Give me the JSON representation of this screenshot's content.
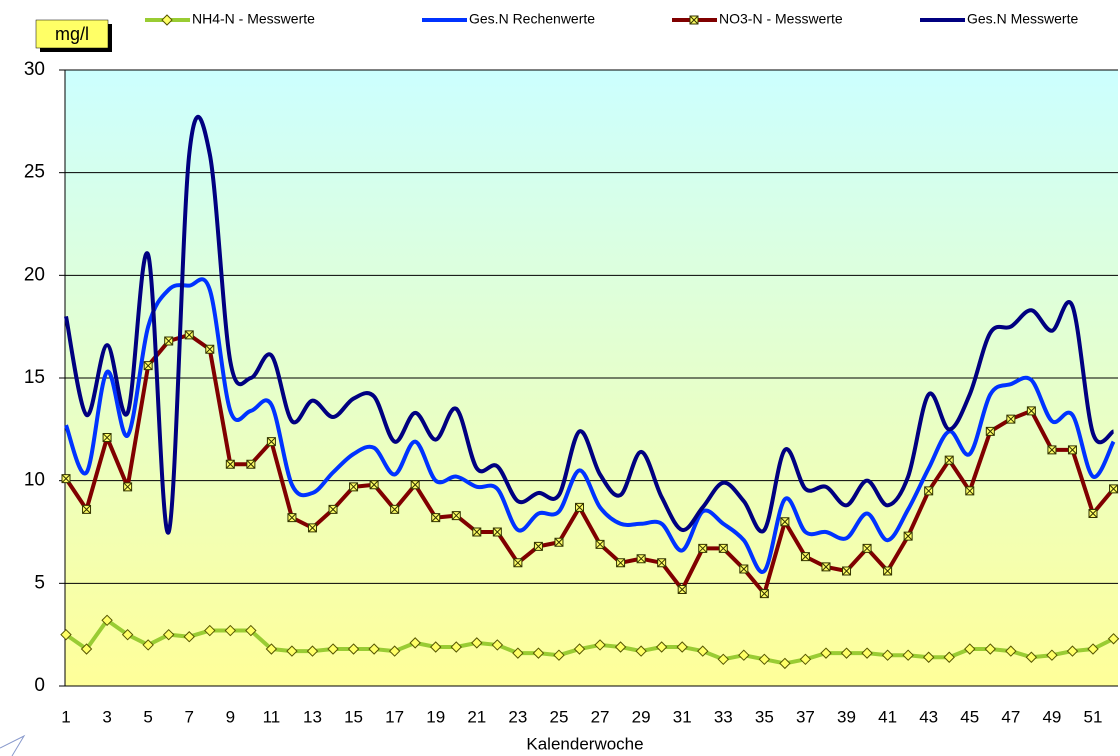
{
  "chart_data": {
    "type": "line",
    "unit_label": "mg/l",
    "x_label": "Kalenderwoche",
    "categories": [
      "1",
      null,
      "3",
      null,
      "5",
      null,
      "7",
      null,
      "9",
      null,
      "11",
      null,
      "13",
      null,
      "15",
      null,
      "17",
      null,
      "19",
      null,
      "21",
      null,
      "23",
      null,
      "25",
      null,
      "27",
      null,
      "29",
      null,
      "31",
      null,
      "33",
      null,
      "35",
      null,
      "37",
      null,
      "39",
      null,
      "41",
      null,
      "43",
      null,
      "45",
      null,
      "47",
      null,
      "49",
      null,
      "51",
      null
    ],
    "ylim": [
      0,
      30
    ],
    "yticks": [
      0,
      5,
      10,
      15,
      20,
      25,
      30
    ],
    "grid": true,
    "legend": "top",
    "series": [
      {
        "name": "NH4-N - Messwerte",
        "color": "#99cc33",
        "marker": "diamond",
        "smooth": false,
        "values": [
          2.5,
          1.8,
          3.2,
          2.5,
          2.0,
          2.5,
          2.4,
          2.7,
          2.7,
          2.7,
          1.8,
          1.7,
          1.7,
          1.8,
          1.8,
          1.8,
          1.7,
          2.1,
          1.9,
          1.9,
          2.1,
          2.0,
          1.6,
          1.6,
          1.5,
          1.8,
          2.0,
          1.9,
          1.7,
          1.9,
          1.9,
          1.7,
          1.3,
          1.5,
          1.3,
          1.1,
          1.3,
          1.6,
          1.6,
          1.6,
          1.5,
          1.5,
          1.4,
          1.4,
          1.8,
          1.8,
          1.7,
          1.4,
          1.5,
          1.7,
          1.8,
          2.3
        ]
      },
      {
        "name": "Ges.N Rechenwerte",
        "color": "#0033ff",
        "smooth": true,
        "values": [
          12.7,
          10.4,
          15.3,
          12.2,
          17.5,
          19.3,
          19.5,
          19.3,
          13.4,
          13.4,
          13.7,
          9.8,
          9.4,
          10.4,
          11.3,
          11.6,
          10.3,
          11.9,
          10.0,
          10.2,
          9.7,
          9.6,
          7.6,
          8.4,
          8.5,
          10.5,
          8.7,
          7.9,
          7.9,
          7.9,
          6.6,
          8.5,
          7.9,
          7.1,
          5.6,
          9.1,
          7.5,
          7.5,
          7.2,
          8.4,
          7.1,
          8.6,
          10.6,
          12.4,
          11.3,
          14.2,
          14.7,
          14.9,
          12.9,
          13.2,
          10.2,
          11.9
        ]
      },
      {
        "name": "NO3-N - Messwerte",
        "color": "#800000",
        "marker": "square-x",
        "smooth": false,
        "values": [
          10.1,
          8.6,
          12.1,
          9.7,
          15.6,
          16.8,
          17.1,
          16.4,
          10.8,
          10.8,
          11.9,
          8.2,
          7.7,
          8.6,
          9.7,
          9.8,
          8.6,
          9.8,
          8.2,
          8.3,
          7.5,
          7.5,
          6.0,
          6.8,
          7.0,
          8.7,
          6.9,
          6.0,
          6.2,
          6.0,
          4.7,
          6.7,
          6.7,
          5.7,
          4.5,
          8.0,
          6.3,
          5.8,
          5.6,
          6.7,
          5.6,
          7.3,
          9.5,
          11.0,
          9.5,
          12.4,
          13.0,
          13.4,
          11.5,
          11.5,
          8.4,
          9.6
        ]
      },
      {
        "name": "Ges.N Messwerte",
        "color": "#000080",
        "smooth": true,
        "values": [
          18.0,
          13.2,
          16.6,
          13.3,
          21.0,
          7.5,
          25.9,
          25.9,
          15.8,
          15.0,
          16.1,
          12.9,
          13.9,
          13.1,
          14.0,
          14.1,
          11.9,
          13.3,
          12.0,
          13.5,
          10.6,
          10.7,
          9.0,
          9.4,
          9.3,
          12.4,
          10.3,
          9.3,
          11.4,
          9.2,
          7.6,
          8.7,
          9.9,
          9.0,
          7.6,
          11.5,
          9.6,
          9.7,
          8.8,
          10.0,
          8.8,
          10.2,
          14.2,
          12.5,
          14.2,
          17.2,
          17.5,
          18.3,
          17.3,
          18.5,
          12.3,
          12.4
        ]
      }
    ]
  }
}
